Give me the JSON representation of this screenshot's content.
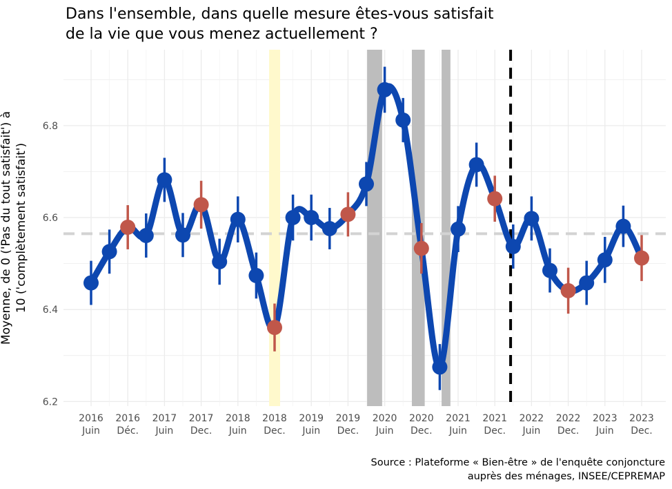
{
  "title_line1": "Dans l'ensemble, dans quelle mesure êtes-vous satisfait",
  "title_line2": " de la vie que vous menez actuellement ?",
  "caption_line1": "Source : Plateforme « Bien-être » de l'enquête conjoncture",
  "caption_line2": "auprès des ménages, INSEE/CEPREMAP",
  "colors": {
    "line": "#0d47b0",
    "juin": "#0d47b0",
    "dec": "#c0574a",
    "mean_line": "#d3d3d3",
    "highlight_yellow": "#fff9cc",
    "highlight_gray": "#bdbdbd",
    "event_line": "#000000"
  },
  "chart_data": {
    "type": "line",
    "title": "Dans l'ensemble, dans quelle mesure êtes-vous satisfait de la vie que vous menez actuellement ?",
    "ylabel_line1": "Moyenne, de 0 ('Pas du tout satisfait') à",
    "ylabel_line2": "10 ('complètement satisfait')",
    "xlabel": "",
    "ylim": [
      6.19,
      6.965
    ],
    "xlim": [
      -0.75,
      15.75
    ],
    "y_ticks": [
      6.2,
      6.4,
      6.6,
      6.8
    ],
    "y_tick_labels": [
      "6.2",
      "6.4",
      "6.6",
      "6.8"
    ],
    "x_tick_labels": [
      [
        "2016",
        "Juin"
      ],
      [
        "2016",
        "Déc."
      ],
      [
        "2017",
        "Juin"
      ],
      [
        "2017",
        "Dec."
      ],
      [
        "2018",
        "Juin"
      ],
      [
        "2018",
        "Dec."
      ],
      [
        "2019",
        "Juin"
      ],
      [
        "2019",
        "Dec."
      ],
      [
        "2020",
        "Juin"
      ],
      [
        "2020",
        "Dec."
      ],
      [
        "2021",
        "Juin"
      ],
      [
        "2021",
        "Dec."
      ],
      [
        "2022",
        "Juin"
      ],
      [
        "2022",
        "Dec."
      ],
      [
        "2023",
        "Juin"
      ],
      [
        "2023",
        "Dec."
      ]
    ],
    "mean_value": 6.565,
    "grid": true,
    "legend": "none",
    "points": [
      {
        "x": 0.0,
        "y": 6.458,
        "err": 0.048,
        "kind": "juin"
      },
      {
        "x": 0.5,
        "y": 6.526,
        "err": 0.048,
        "kind": "juin"
      },
      {
        "x": 1.0,
        "y": 6.579,
        "err": 0.048,
        "kind": "dec"
      },
      {
        "x": 1.5,
        "y": 6.561,
        "err": 0.048,
        "kind": "juin"
      },
      {
        "x": 2.0,
        "y": 6.682,
        "err": 0.048,
        "kind": "juin"
      },
      {
        "x": 2.5,
        "y": 6.562,
        "err": 0.048,
        "kind": "juin"
      },
      {
        "x": 3.0,
        "y": 6.628,
        "err": 0.052,
        "kind": "dec"
      },
      {
        "x": 3.5,
        "y": 6.504,
        "err": 0.05,
        "kind": "juin"
      },
      {
        "x": 4.0,
        "y": 6.596,
        "err": 0.05,
        "kind": "juin"
      },
      {
        "x": 4.5,
        "y": 6.474,
        "err": 0.05,
        "kind": "juin"
      },
      {
        "x": 5.0,
        "y": 6.361,
        "err": 0.052,
        "kind": "dec"
      },
      {
        "x": 5.5,
        "y": 6.6,
        "err": 0.05,
        "kind": "juin"
      },
      {
        "x": 6.0,
        "y": 6.6,
        "err": 0.05,
        "kind": "juin"
      },
      {
        "x": 6.5,
        "y": 6.576,
        "err": 0.045,
        "kind": "juin"
      },
      {
        "x": 7.0,
        "y": 6.607,
        "err": 0.048,
        "kind": "dec"
      },
      {
        "x": 7.5,
        "y": 6.673,
        "err": 0.048,
        "kind": "juin"
      },
      {
        "x": 8.0,
        "y": 6.878,
        "err": 0.05,
        "kind": "juin"
      },
      {
        "x": 8.5,
        "y": 6.812,
        "err": 0.048,
        "kind": "juin"
      },
      {
        "x": 9.0,
        "y": 6.533,
        "err": 0.055,
        "kind": "dec"
      },
      {
        "x": 9.5,
        "y": 6.275,
        "err": 0.05,
        "kind": "juin"
      },
      {
        "x": 10.0,
        "y": 6.575,
        "err": 0.05,
        "kind": "juin"
      },
      {
        "x": 10.5,
        "y": 6.715,
        "err": 0.048,
        "kind": "juin"
      },
      {
        "x": 11.0,
        "y": 6.641,
        "err": 0.05,
        "kind": "dec"
      },
      {
        "x": 11.5,
        "y": 6.537,
        "err": 0.048,
        "kind": "juin"
      },
      {
        "x": 12.0,
        "y": 6.598,
        "err": 0.048,
        "kind": "juin"
      },
      {
        "x": 12.5,
        "y": 6.485,
        "err": 0.048,
        "kind": "juin"
      },
      {
        "x": 13.0,
        "y": 6.441,
        "err": 0.05,
        "kind": "dec"
      },
      {
        "x": 13.5,
        "y": 6.458,
        "err": 0.048,
        "kind": "juin"
      },
      {
        "x": 14.0,
        "y": 6.508,
        "err": 0.05,
        "kind": "juin"
      },
      {
        "x": 14.5,
        "y": 6.581,
        "err": 0.045,
        "kind": "juin"
      },
      {
        "x": 15.0,
        "y": 6.512,
        "err": 0.05,
        "kind": "dec"
      }
    ],
    "highlight_bands": [
      {
        "x0": 4.85,
        "x1": 5.15,
        "color": "yellow"
      },
      {
        "x0": 7.52,
        "x1": 7.93,
        "color": "gray"
      },
      {
        "x0": 8.74,
        "x1": 9.09,
        "color": "gray"
      },
      {
        "x0": 9.55,
        "x1": 9.79,
        "color": "gray"
      }
    ],
    "event_line_x": 11.43
  }
}
